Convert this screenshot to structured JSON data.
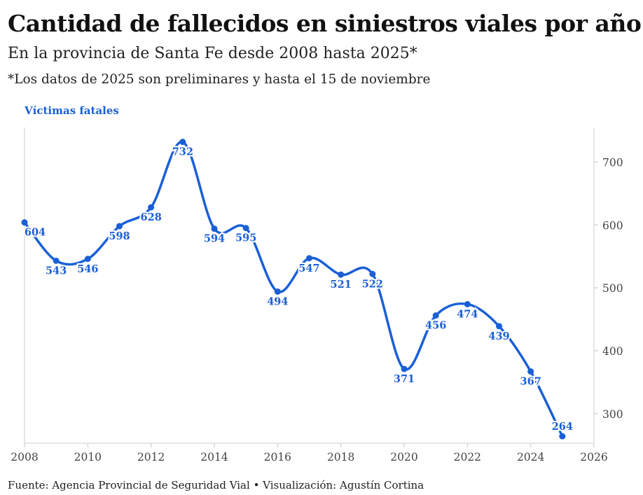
{
  "header": {
    "title": "Cantidad de fallecidos en siniestros viales por año",
    "subtitle": "En la provincia de Santa Fe desde 2008 hasta 2025*",
    "note": "*Los datos de 2025 son preliminares y hasta el 15 de noviembre"
  },
  "footer": {
    "source": "Fuente: Agencia Provincial de Seguridad Vial • Visualización: Agustín Cortina"
  },
  "chart_data": {
    "type": "line",
    "title": "Cantidad de fallecidos en siniestros viales por año",
    "ylabel": "Víctimas fatales",
    "xlabel": "",
    "color": "#1a5fd6",
    "x": [
      2008,
      2009,
      2010,
      2011,
      2012,
      2013,
      2014,
      2015,
      2016,
      2017,
      2018,
      2019,
      2020,
      2021,
      2022,
      2023,
      2024,
      2025
    ],
    "series": [
      {
        "values": [
          604,
          543,
          546,
          598,
          628,
          732,
          594,
          595,
          494,
          547,
          521,
          522,
          371,
          456,
          474,
          439,
          367,
          264
        ]
      }
    ],
    "xlim": [
      2008,
      2026
    ],
    "ylim": [
      253,
      755
    ],
    "xticks": [
      "2008",
      "2010",
      "2012",
      "2014",
      "2016",
      "2018",
      "2020",
      "2022",
      "2024",
      "2026"
    ],
    "yticks": [
      "300",
      "400",
      "500",
      "600",
      "700"
    ],
    "y_axis_position": "right",
    "grid": false
  }
}
